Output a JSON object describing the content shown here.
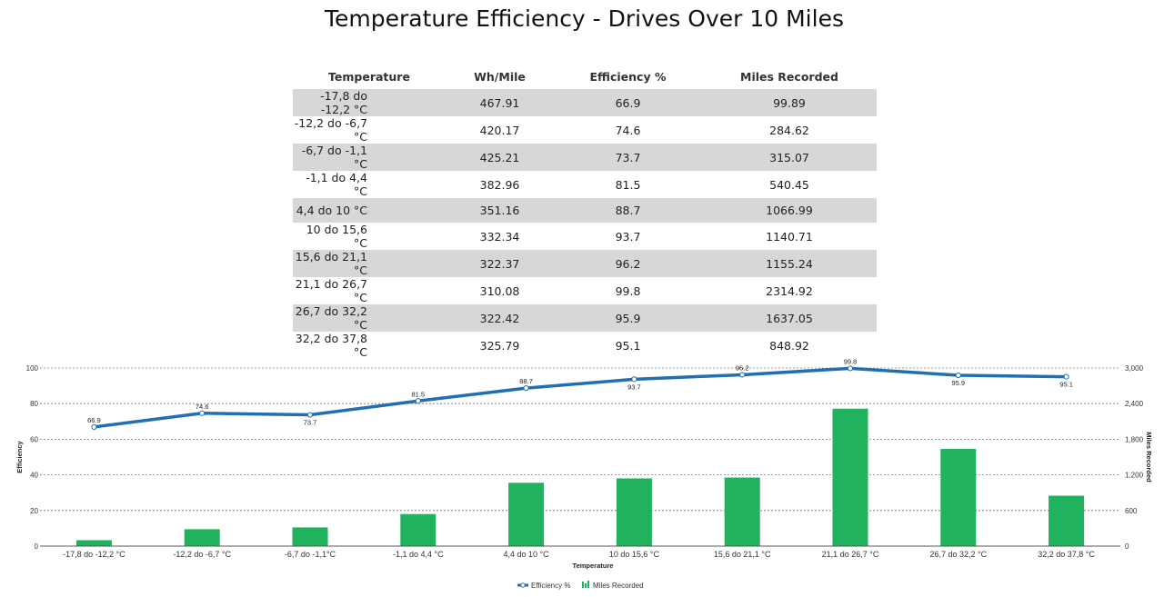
{
  "page": {
    "title": "Temperature Efficiency - Drives Over 10 Miles"
  },
  "table": {
    "headers": [
      "Temperature",
      "Wh/Mile",
      "Efficiency %",
      "Miles Recorded"
    ],
    "rows": [
      [
        "-17,8 do -12,2 °C",
        "467.91",
        "66.9",
        "99.89"
      ],
      [
        "-12,2 do -6,7 °C",
        "420.17",
        "74.6",
        "284.62"
      ],
      [
        "-6,7 do -1,1 °C",
        "425.21",
        "73.7",
        "315.07"
      ],
      [
        "-1,1 do 4,4 °C",
        "382.96",
        "81.5",
        "540.45"
      ],
      [
        "4,4 do 10 °C",
        "351.16",
        "88.7",
        "1066.99"
      ],
      [
        "10 do 15,6 °C",
        "332.34",
        "93.7",
        "1140.71"
      ],
      [
        "15,6 do 21,1 °C",
        "322.37",
        "96.2",
        "1155.24"
      ],
      [
        "21,1 do 26,7 °C",
        "310.08",
        "99.8",
        "2314.92"
      ],
      [
        "26,7 do 32,2 °C",
        "322.42",
        "95.9",
        "1637.05"
      ],
      [
        "32,2 do 37,8 °C",
        "325.79",
        "95.1",
        "848.92"
      ]
    ]
  },
  "colors": {
    "line": "#1f6fb2",
    "bar": "#20b25c",
    "grid": "#777777",
    "row_shade": "#d7d7d7"
  },
  "chart_data": {
    "type": "bar",
    "categories": [
      "-17,8 do -12,2 °C",
      "-12,2 do -6,7 °C",
      "-6,7 do -1,1°C",
      "-1,1 do 4,4 °C",
      "4,4 do 10 °C",
      "10 do 15,6 °C",
      "15,6 do 21,1 °C",
      "21,1 do 26,7 °C",
      "26,7 do 32,2 °C",
      "32,2 do 37,8 °C"
    ],
    "series": [
      {
        "name": "Efficiency %",
        "type": "line",
        "axis": "left",
        "values": [
          66.9,
          74.6,
          73.7,
          81.5,
          88.7,
          93.7,
          96.2,
          99.8,
          95.9,
          95.1
        ],
        "labels": [
          "66.9",
          "74.6",
          "73.7",
          "81.5",
          "88.7",
          "93.7",
          "96.2",
          "99.8",
          "95.9",
          "95.1"
        ]
      },
      {
        "name": "Miles Recorded",
        "type": "bar",
        "axis": "right",
        "values": [
          99.89,
          284.62,
          315.07,
          540.45,
          1066.99,
          1140.71,
          1155.24,
          2314.92,
          1637.05,
          848.92
        ]
      }
    ],
    "xlabel": "Temperature",
    "ylabel": "Efficiency",
    "y2label": "Miles Recorded",
    "ylim": [
      0,
      100
    ],
    "y2lim": [
      0,
      3000
    ],
    "yticks": [
      "0",
      "20",
      "40",
      "60",
      "80",
      "100"
    ],
    "y2ticks": [
      "0",
      "600",
      "1,200",
      "1,800",
      "2,400",
      "3,000"
    ],
    "grid": true,
    "legend": "bottom-center",
    "legend_entries": [
      "Efficiency %",
      "Miles Recorded"
    ]
  }
}
